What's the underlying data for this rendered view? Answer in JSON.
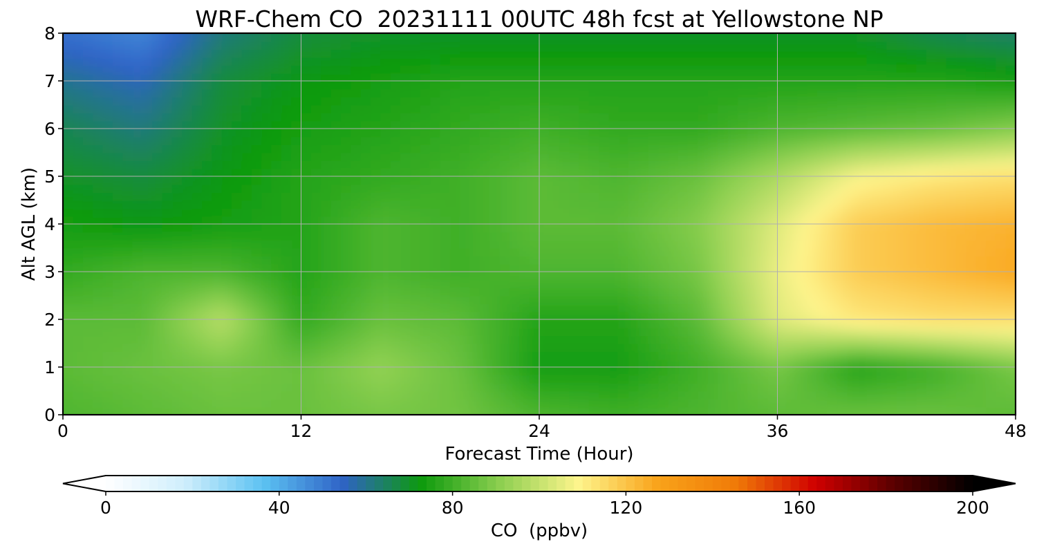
{
  "chart_data": {
    "type": "heatmap",
    "title": "WRF-Chem CO  20231111 00UTC 48h fcst at Yellowstone NP",
    "xlabel": "Forecast Time (Hour)",
    "ylabel": "Alt AGL (km)",
    "x_ticks": [
      "0",
      "12",
      "24",
      "36",
      "48"
    ],
    "y_ticks": [
      "0",
      "1",
      "2",
      "3",
      "4",
      "5",
      "6",
      "7",
      "8"
    ],
    "xlim": [
      0,
      48
    ],
    "ylim": [
      0,
      8
    ],
    "grid": true,
    "x": [
      0,
      4,
      8,
      12,
      16,
      20,
      24,
      28,
      32,
      36,
      40,
      44,
      48
    ],
    "y": [
      0,
      1,
      2,
      3,
      4,
      5,
      6,
      7,
      8
    ],
    "z": [
      [
        82,
        84,
        86,
        86,
        88,
        87,
        82,
        80,
        82,
        84,
        86,
        86,
        84
      ],
      [
        84,
        86,
        88,
        86,
        92,
        86,
        74,
        74,
        80,
        88,
        76,
        80,
        88
      ],
      [
        84,
        84,
        98,
        78,
        86,
        84,
        76,
        76,
        84,
        104,
        112,
        114,
        114
      ],
      [
        78,
        82,
        82,
        76,
        82,
        80,
        82,
        82,
        88,
        106,
        118,
        122,
        126
      ],
      [
        74,
        72,
        74,
        76,
        82,
        80,
        84,
        84,
        90,
        104,
        118,
        122,
        124
      ],
      [
        70,
        68,
        72,
        76,
        78,
        80,
        84,
        82,
        86,
        96,
        108,
        112,
        114
      ],
      [
        66,
        62,
        70,
        74,
        76,
        78,
        80,
        78,
        78,
        82,
        84,
        86,
        90
      ],
      [
        60,
        56,
        68,
        72,
        74,
        76,
        76,
        76,
        76,
        76,
        76,
        76,
        74
      ],
      [
        52,
        48,
        62,
        68,
        70,
        70,
        70,
        70,
        70,
        70,
        70,
        66,
        64
      ]
    ],
    "colorbar": {
      "label": "CO  (ppbv)",
      "ticks": [
        "0",
        "40",
        "80",
        "120",
        "160",
        "200"
      ],
      "range": [
        0,
        200
      ],
      "extend": "both",
      "colors": [
        "#ffffff",
        "#cfeefc",
        "#5cc2f2",
        "#2f63c6",
        "#0d9a0d",
        "#8ccf50",
        "#fef48c",
        "#f9a31a",
        "#f07a08",
        "#d00000",
        "#5a0000",
        "#000000"
      ]
    }
  }
}
